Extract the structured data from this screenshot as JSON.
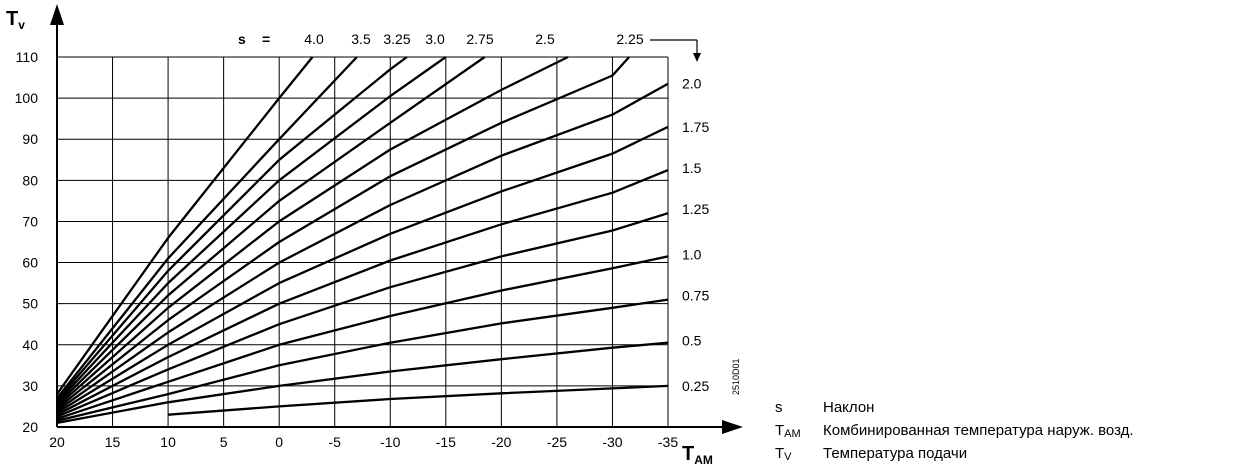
{
  "chart_data": {
    "type": "line",
    "x_axis": {
      "label_main": "T",
      "label_sub": "AM",
      "range": [
        20,
        -35
      ],
      "ticks": [
        20,
        15,
        10,
        5,
        0,
        -5,
        -10,
        -15,
        -20,
        -25,
        -30,
        -35
      ]
    },
    "y_axis": {
      "label_main": "T",
      "label_sub": "V",
      "range": [
        20,
        110
      ],
      "ticks": [
        20,
        30,
        40,
        50,
        60,
        70,
        80,
        90,
        100,
        110
      ]
    },
    "grid": true,
    "slope_prefix": "s",
    "slope_eq": "=",
    "top_labels": [
      "4.0",
      "3.5",
      "3.25",
      "3.0",
      "2.75",
      "2.5",
      "2.25"
    ],
    "series": [
      {
        "name": "0.25",
        "points": [
          [
            10,
            23
          ],
          [
            0,
            25
          ],
          [
            -10,
            26.8
          ],
          [
            -20,
            28.2
          ],
          [
            -30,
            29.4
          ],
          [
            -35,
            30
          ]
        ]
      },
      {
        "name": "0.5",
        "points": [
          [
            20,
            21
          ],
          [
            10,
            26
          ],
          [
            0,
            30
          ],
          [
            -10,
            33.5
          ],
          [
            -20,
            36.5
          ],
          [
            -30,
            39.3
          ],
          [
            -35,
            40.5
          ]
        ]
      },
      {
        "name": "0.75",
        "points": [
          [
            20,
            21.5
          ],
          [
            10,
            28
          ],
          [
            0,
            35
          ],
          [
            -10,
            40.5
          ],
          [
            -20,
            45.2
          ],
          [
            -30,
            49
          ],
          [
            -35,
            51
          ]
        ]
      },
      {
        "name": "1.0",
        "points": [
          [
            20,
            22
          ],
          [
            10,
            31
          ],
          [
            0,
            40
          ],
          [
            -10,
            47
          ],
          [
            -20,
            53.2
          ],
          [
            -30,
            58.6
          ],
          [
            -35,
            61.5
          ]
        ]
      },
      {
        "name": "1.25",
        "points": [
          [
            20,
            22.5
          ],
          [
            10,
            34
          ],
          [
            0,
            45
          ],
          [
            -10,
            54
          ],
          [
            -20,
            61.5
          ],
          [
            -30,
            67.8
          ],
          [
            -35,
            72
          ]
        ]
      },
      {
        "name": "1.5",
        "points": [
          [
            20,
            23
          ],
          [
            10,
            37
          ],
          [
            0,
            50
          ],
          [
            -10,
            60.5
          ],
          [
            -20,
            69.3
          ],
          [
            -30,
            77
          ],
          [
            -35,
            82.5
          ]
        ]
      },
      {
        "name": "1.75",
        "points": [
          [
            20,
            23.5
          ],
          [
            10,
            40
          ],
          [
            0,
            55
          ],
          [
            -10,
            67
          ],
          [
            -20,
            77.3
          ],
          [
            -30,
            86.5
          ],
          [
            -35,
            93
          ]
        ]
      },
      {
        "name": "2.0",
        "points": [
          [
            20,
            24
          ],
          [
            10,
            43
          ],
          [
            0,
            60
          ],
          [
            -10,
            74
          ],
          [
            -20,
            86
          ],
          [
            -30,
            96
          ],
          [
            -35,
            103.5
          ]
        ]
      },
      {
        "name": "2.25",
        "points": [
          [
            20,
            24.5
          ],
          [
            10,
            46
          ],
          [
            0,
            65
          ],
          [
            -10,
            81
          ],
          [
            -20,
            94
          ],
          [
            -30,
            105.5
          ],
          [
            -31.5,
            110
          ]
        ]
      },
      {
        "name": "2.5",
        "points": [
          [
            20,
            25
          ],
          [
            10,
            49
          ],
          [
            0,
            70
          ],
          [
            -10,
            87.5
          ],
          [
            -20,
            102
          ],
          [
            -26,
            110
          ]
        ]
      },
      {
        "name": "2.75",
        "points": [
          [
            20,
            25.5
          ],
          [
            10,
            52
          ],
          [
            0,
            75
          ],
          [
            -10,
            94
          ],
          [
            -18.5,
            110
          ]
        ]
      },
      {
        "name": "3.0",
        "points": [
          [
            20,
            26
          ],
          [
            10,
            55
          ],
          [
            0,
            80
          ],
          [
            -10,
            100.5
          ],
          [
            -15,
            110
          ]
        ]
      },
      {
        "name": "3.25",
        "points": [
          [
            20,
            26.5
          ],
          [
            10,
            58
          ],
          [
            0,
            85
          ],
          [
            -10,
            107
          ],
          [
            -11.5,
            110
          ]
        ]
      },
      {
        "name": "3.5",
        "points": [
          [
            20,
            27
          ],
          [
            10,
            61
          ],
          [
            0,
            90
          ],
          [
            -7,
            110
          ]
        ]
      },
      {
        "name": "4.0",
        "points": [
          [
            20,
            28
          ],
          [
            10,
            66
          ],
          [
            0,
            100
          ],
          [
            -3,
            110
          ]
        ]
      }
    ],
    "side_labels": [
      {
        "text": "2.0",
        "y": 103.5
      },
      {
        "text": "1.75",
        "y": 93
      },
      {
        "text": "1.5",
        "y": 83
      },
      {
        "text": "1.25",
        "y": 73
      },
      {
        "text": "1.0",
        "y": 62
      },
      {
        "text": "0.75",
        "y": 52
      },
      {
        "text": "0.5",
        "y": 41
      },
      {
        "text": "0.25",
        "y": 30
      }
    ],
    "figure_code": "2510D01"
  },
  "legend": [
    {
      "sym_main": "s",
      "sym_sub": "",
      "text": "Наклон"
    },
    {
      "sym_main": "T",
      "sym_sub": "AM",
      "text": "Комбинированная температура наруж. возд."
    },
    {
      "sym_main": "T",
      "sym_sub": "V",
      "text": "Температура подачи"
    }
  ]
}
